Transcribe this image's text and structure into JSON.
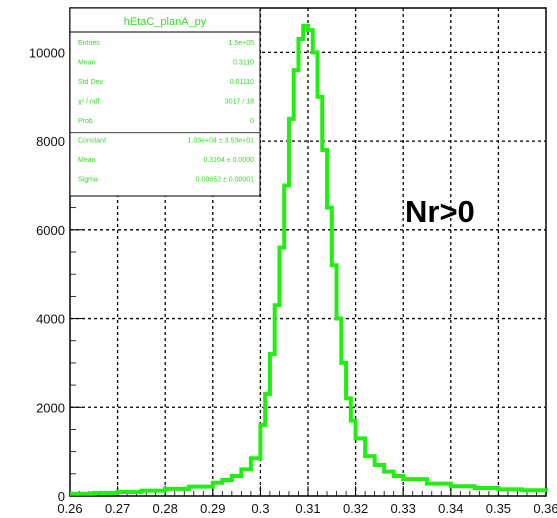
{
  "annotation": "Nr>0",
  "statbox": {
    "title": "hEtaC_planA_py",
    "rows": [
      {
        "label": "Entries",
        "value": "1.5e+05"
      },
      {
        "label": "Mean",
        "value": "0.3110"
      },
      {
        "label": "Std Dev",
        "value": "0.01110"
      },
      {
        "label": "χ² / ndf",
        "value": "3017 / 18"
      },
      {
        "label": "Prob",
        "value": "0"
      },
      {
        "label": "Constant",
        "value": "1.03e+04 ± 3.53e+01"
      },
      {
        "label": "Mean",
        "value": "0.3104 ± 0.0000"
      },
      {
        "label": "Sigma",
        "value": "0.00652 ± 0.00001"
      }
    ]
  },
  "colors": {
    "line": "#22ee11",
    "statbox": "#33dd22",
    "grid": "#000000",
    "axis": "#000000"
  },
  "chart_data": {
    "type": "line",
    "title": "hEtaC_planA_py",
    "xlabel": "",
    "ylabel": "",
    "xlim": [
      0.26,
      0.36
    ],
    "ylim": [
      0,
      11000
    ],
    "grid": true,
    "xticks": [
      "0.26",
      "0.27",
      "0.28",
      "0.29",
      "0.3",
      "0.31",
      "0.32",
      "0.33",
      "0.34",
      "0.35",
      "0.36"
    ],
    "yticks": [
      "0",
      "2000",
      "4000",
      "6000",
      "8000",
      "10000"
    ],
    "series": [
      {
        "x": [
          0.26,
          0.265,
          0.27,
          0.275,
          0.28,
          0.285,
          0.29,
          0.292,
          0.294,
          0.296,
          0.298,
          0.3,
          0.301,
          0.302,
          0.303,
          0.304,
          0.305,
          0.306,
          0.307,
          0.308,
          0.309,
          0.31,
          0.311,
          0.312,
          0.313,
          0.314,
          0.315,
          0.316,
          0.317,
          0.318,
          0.319,
          0.32,
          0.322,
          0.324,
          0.326,
          0.328,
          0.33,
          0.335,
          0.34,
          0.345,
          0.35,
          0.355,
          0.36
        ],
        "values": [
          50,
          70,
          90,
          120,
          160,
          210,
          300,
          360,
          450,
          600,
          850,
          1600,
          2300,
          3200,
          4300,
          5600,
          7000,
          8500,
          9600,
          10300,
          10600,
          10500,
          10000,
          9000,
          7800,
          6500,
          5200,
          4000,
          3000,
          2200,
          1700,
          1300,
          900,
          700,
          550,
          450,
          380,
          280,
          220,
          180,
          150,
          130,
          110
        ]
      }
    ]
  }
}
